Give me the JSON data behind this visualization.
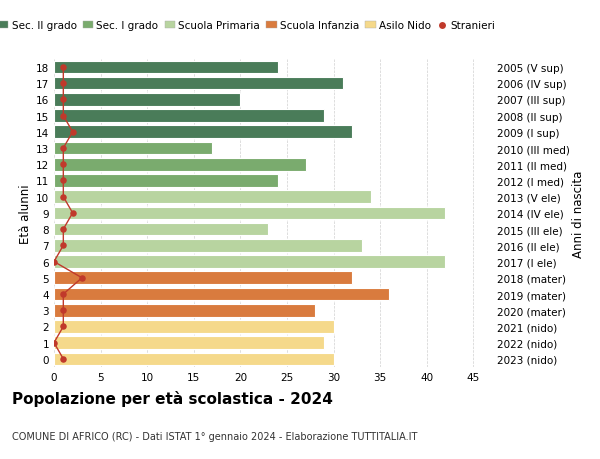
{
  "ages": [
    18,
    17,
    16,
    15,
    14,
    13,
    12,
    11,
    10,
    9,
    8,
    7,
    6,
    5,
    4,
    3,
    2,
    1,
    0
  ],
  "years": [
    "2005 (V sup)",
    "2006 (IV sup)",
    "2007 (III sup)",
    "2008 (II sup)",
    "2009 (I sup)",
    "2010 (III med)",
    "2011 (II med)",
    "2012 (I med)",
    "2013 (V ele)",
    "2014 (IV ele)",
    "2015 (III ele)",
    "2016 (II ele)",
    "2017 (I ele)",
    "2018 (mater)",
    "2019 (mater)",
    "2020 (mater)",
    "2021 (nido)",
    "2022 (nido)",
    "2023 (nido)"
  ],
  "values": [
    24,
    31,
    20,
    29,
    32,
    17,
    27,
    24,
    34,
    42,
    23,
    33,
    42,
    32,
    36,
    28,
    30,
    29,
    30
  ],
  "stranieri": [
    1,
    1,
    1,
    1,
    2,
    1,
    1,
    1,
    1,
    2,
    1,
    1,
    0,
    3,
    1,
    1,
    1,
    0,
    1
  ],
  "colors": [
    "#4a7c59",
    "#4a7c59",
    "#4a7c59",
    "#4a7c59",
    "#4a7c59",
    "#7aab6e",
    "#7aab6e",
    "#7aab6e",
    "#b8d4a0",
    "#b8d4a0",
    "#b8d4a0",
    "#b8d4a0",
    "#b8d4a0",
    "#d97b3e",
    "#d97b3e",
    "#d97b3e",
    "#f5d98b",
    "#f5d98b",
    "#f5d98b"
  ],
  "legend_labels": [
    "Sec. II grado",
    "Sec. I grado",
    "Scuola Primaria",
    "Scuola Infanzia",
    "Asilo Nido",
    "Stranieri"
  ],
  "legend_colors": [
    "#4a7c59",
    "#7aab6e",
    "#b8d4a0",
    "#d97b3e",
    "#f5d98b",
    "#c0392b"
  ],
  "title": "Popolazione per età scolastica - 2024",
  "subtitle": "COMUNE DI AFRICO (RC) - Dati ISTAT 1° gennaio 2024 - Elaborazione TUTTITALIA.IT",
  "ylabel_left": "Età alunni",
  "ylabel_right": "Anni di nascita",
  "xlim": [
    0,
    47
  ],
  "background_color": "#ffffff",
  "bar_edge_color": "#ffffff",
  "grid_color": "#d0d0d0",
  "title_fontsize": 11,
  "subtitle_fontsize": 7,
  "tick_fontsize": 7.5,
  "legend_fontsize": 7.5,
  "bar_height": 0.78
}
